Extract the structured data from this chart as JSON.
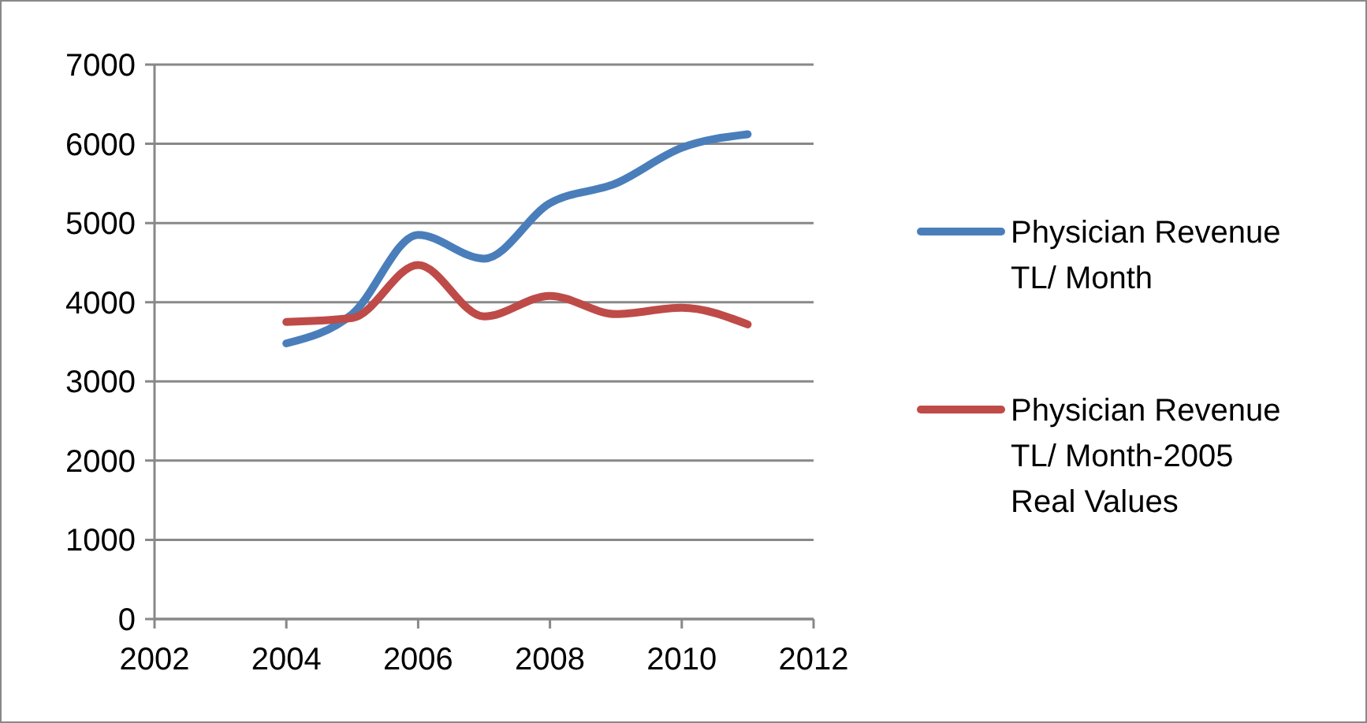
{
  "chart_data": {
    "type": "line",
    "x": [
      2004,
      2005,
      2006,
      2007,
      2008,
      2009,
      2010,
      2011
    ],
    "series": [
      {
        "name": "Physician Revenue TL/ Month",
        "color": "#4a7ebb",
        "values": [
          3480,
          3850,
          4850,
          4550,
          5250,
          5500,
          5950,
          6120
        ]
      },
      {
        "name": "Physician Revenue TL/ Month-2005 Real Values",
        "color": "#be4b48",
        "values": [
          3750,
          3800,
          4470,
          3820,
          4080,
          3850,
          3930,
          3720
        ]
      }
    ],
    "xlim": [
      2002,
      2012
    ],
    "xticks": [
      2002,
      2004,
      2006,
      2008,
      2010,
      2012
    ],
    "ylim": [
      0,
      7000
    ],
    "yticks": [
      0,
      1000,
      2000,
      3000,
      4000,
      5000,
      6000,
      7000
    ],
    "grid": "y",
    "legend": "right",
    "line_style": "solid"
  }
}
